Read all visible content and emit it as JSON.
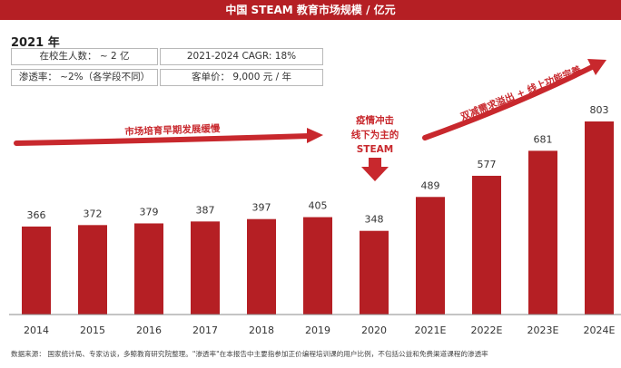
{
  "header": {
    "title": "中国 STEAM 教育市场规模 / 亿元"
  },
  "info": {
    "year": "2021 年",
    "students": "在校生人数： ~ 2 亿",
    "cagr": "2021-2024 CAGR: 18%",
    "penetration": "渗透率：  ~2%（各学段不同）",
    "price": "客单价：  9,000 元 / 年"
  },
  "chart_data": {
    "type": "bar",
    "categories": [
      "2014",
      "2015",
      "2016",
      "2017",
      "2018",
      "2019",
      "2020",
      "2021E",
      "2022E",
      "2023E",
      "2024E"
    ],
    "values": [
      366,
      372,
      379,
      387,
      397,
      405,
      348,
      489,
      577,
      681,
      803
    ],
    "value_labels": [
      "366",
      "372",
      "379",
      "387",
      "397",
      "405",
      "348",
      "489",
      "577",
      "681",
      "803"
    ],
    "title": "中国 STEAM 教育市场规模 / 亿元",
    "ylim": [
      0,
      803
    ],
    "grid": false,
    "bar_color": "#b51f24",
    "annotations": {
      "early": "市场培育早期发展缓慢",
      "covid": [
        "疫情冲击",
        "线下为主的",
        "STEAM"
      ],
      "growth": "双减需求溢出 + 线上功能完善"
    }
  },
  "footnote": "数据来源： 国家统计局、专家访谈，多鲸教育研究院整理。\"渗透率\"在本报告中主要指参加正价编程培训课的用户比例，不包括公益和免费渠道课程的渗透率"
}
